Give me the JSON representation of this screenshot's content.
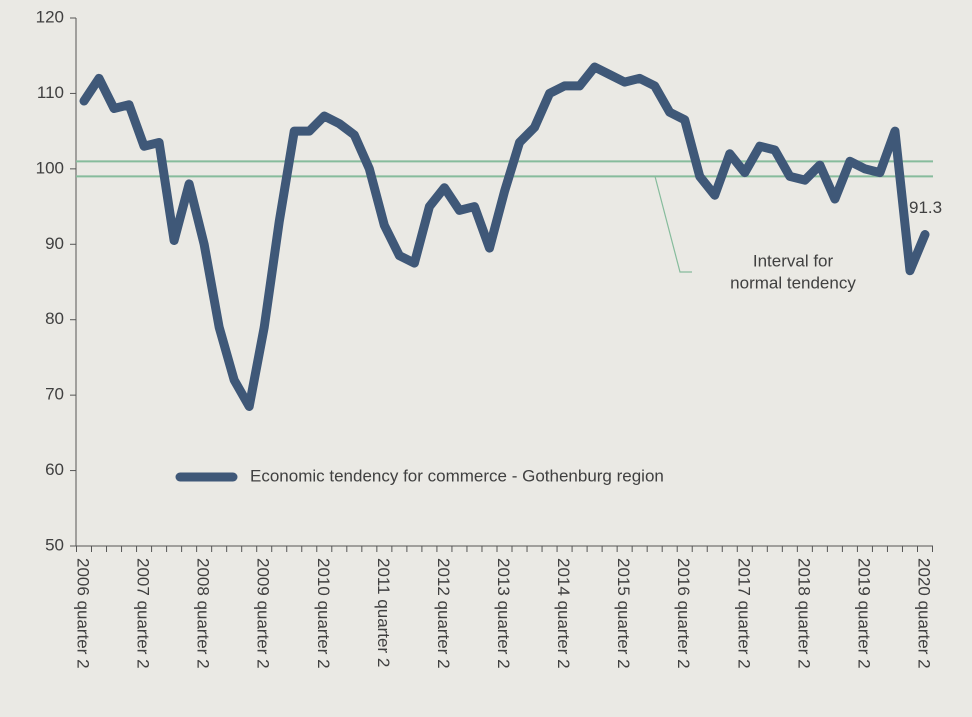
{
  "chart_data": {
    "type": "line",
    "categories": [
      "2006 quarter 2",
      null,
      null,
      null,
      "2007 quarter 2",
      null,
      null,
      null,
      "2008 quarter 2",
      null,
      null,
      null,
      "2009 quarter 2",
      null,
      null,
      null,
      "2010 quarter 2",
      null,
      null,
      null,
      "2011 quarter 2",
      null,
      null,
      null,
      "2012 quarter 2",
      null,
      null,
      null,
      "2013 quarter 2",
      null,
      null,
      null,
      "2014 quarter 2",
      null,
      null,
      null,
      "2015 quarter 2",
      null,
      null,
      null,
      "2016 quarter 2",
      null,
      null,
      null,
      "2017 quarter 2",
      null,
      null,
      null,
      "2018 quarter 2",
      null,
      null,
      null,
      "2019 quarter 2",
      null,
      null,
      null,
      "2020 quarter 2"
    ],
    "series": [
      {
        "name": "Economic tendency for commerce - Gothenburg region",
        "color": "#3f5878",
        "values": [
          109,
          112,
          108,
          108.5,
          103,
          103.5,
          90.5,
          98,
          90,
          79,
          72,
          68.5,
          79,
          93,
          105,
          105,
          107,
          106,
          104.5,
          100,
          92.5,
          88.5,
          87.5,
          95,
          97.5,
          94.5,
          95,
          89.5,
          97,
          103.5,
          105.5,
          110,
          111,
          111,
          113.5,
          112.5,
          111.5,
          112,
          111,
          107.5,
          106.5,
          99,
          96.5,
          102,
          99.5,
          103,
          102.5,
          99,
          98.5,
          100.5,
          96,
          101,
          100,
          99.5,
          105,
          86.5,
          91.3
        ]
      }
    ],
    "labeled_points": [
      56
    ],
    "interval": {
      "label_lines": [
        "Interval for",
        "normal tendency"
      ],
      "values": [
        99,
        101
      ],
      "color": "#86bc9c"
    },
    "ylim": [
      50,
      120
    ],
    "yticks": [
      50,
      60,
      70,
      80,
      90,
      100,
      110,
      120
    ],
    "legend_position": "bottom"
  }
}
